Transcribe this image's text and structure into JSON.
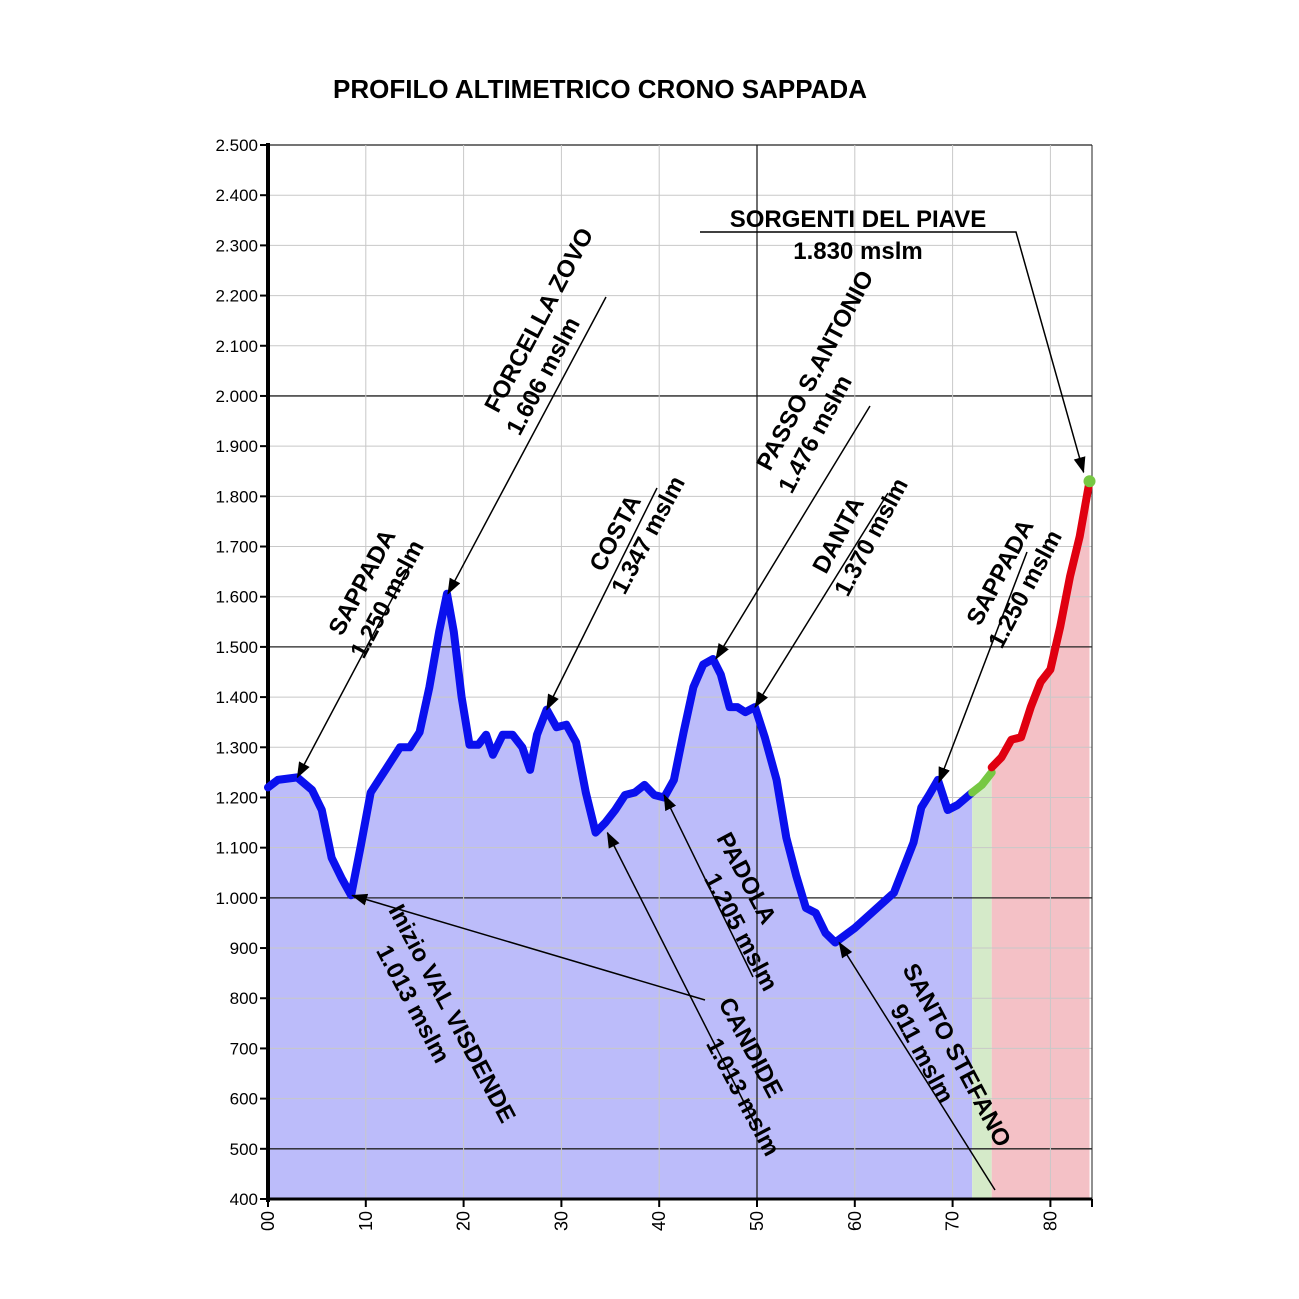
{
  "chart_data": {
    "type": "area",
    "title": "PROFILO ALTIMETRICO CRONO SAPPADA",
    "xlabel": "",
    "ylabel": "",
    "xlim": [
      0,
      84
    ],
    "ylim": [
      400,
      2500
    ],
    "grid": true,
    "x_ticks": [
      {
        "value": 0,
        "label": "00"
      },
      {
        "value": 10,
        "label": "10"
      },
      {
        "value": 20,
        "label": "20"
      },
      {
        "value": 30,
        "label": "30"
      },
      {
        "value": 40,
        "label": "40"
      },
      {
        "value": 50,
        "label": "50"
      },
      {
        "value": 60,
        "label": "60"
      },
      {
        "value": 70,
        "label": "70"
      },
      {
        "value": 80,
        "label": "80"
      }
    ],
    "y_ticks": [
      {
        "value": 400,
        "label": "400"
      },
      {
        "value": 500,
        "label": "500"
      },
      {
        "value": 600,
        "label": "600"
      },
      {
        "value": 700,
        "label": "700"
      },
      {
        "value": 800,
        "label": "800"
      },
      {
        "value": 900,
        "label": "900"
      },
      {
        "value": 1000,
        "label": "1.000"
      },
      {
        "value": 1100,
        "label": "1.100"
      },
      {
        "value": 1200,
        "label": "1.200"
      },
      {
        "value": 1300,
        "label": "1.300"
      },
      {
        "value": 1400,
        "label": "1.400"
      },
      {
        "value": 1500,
        "label": "1.500"
      },
      {
        "value": 1600,
        "label": "1.600"
      },
      {
        "value": 1700,
        "label": "1.700"
      },
      {
        "value": 1800,
        "label": "1.800"
      },
      {
        "value": 1900,
        "label": "1.900"
      },
      {
        "value": 2000,
        "label": "2.000"
      },
      {
        "value": 2100,
        "label": "2.100"
      },
      {
        "value": 2200,
        "label": "2.200"
      },
      {
        "value": 2300,
        "label": "2.300"
      },
      {
        "value": 2400,
        "label": "2.400"
      },
      {
        "value": 2500,
        "label": "2.500"
      }
    ],
    "series": [
      {
        "color": "#0a10ee",
        "fill": "#bcbcfa",
        "points": [
          [
            0,
            1220
          ],
          [
            1,
            1235
          ],
          [
            3,
            1240
          ],
          [
            4.5,
            1215
          ],
          [
            5.5,
            1175
          ],
          [
            6.5,
            1080
          ],
          [
            7.5,
            1040
          ],
          [
            8.5,
            1005
          ],
          [
            9.5,
            1105
          ],
          [
            10.5,
            1210
          ],
          [
            12,
            1255
          ],
          [
            13.5,
            1300
          ],
          [
            14.5,
            1300
          ],
          [
            15.5,
            1330
          ],
          [
            16.5,
            1420
          ],
          [
            17.5,
            1530
          ],
          [
            18.3,
            1606
          ],
          [
            19,
            1530
          ],
          [
            19.8,
            1400
          ],
          [
            20.6,
            1305
          ],
          [
            21.5,
            1305
          ],
          [
            22.3,
            1325
          ],
          [
            23,
            1285
          ],
          [
            24,
            1325
          ],
          [
            25,
            1325
          ],
          [
            26,
            1300
          ],
          [
            26.8,
            1255
          ],
          [
            27.5,
            1325
          ],
          [
            28.5,
            1375
          ],
          [
            29.5,
            1340
          ],
          [
            30.5,
            1345
          ],
          [
            31.5,
            1310
          ],
          [
            32.5,
            1210
          ],
          [
            33.5,
            1130
          ],
          [
            34.5,
            1150
          ],
          [
            35.5,
            1175
          ],
          [
            36.5,
            1205
          ],
          [
            37.5,
            1210
          ],
          [
            38.5,
            1225
          ],
          [
            39.5,
            1205
          ],
          [
            40.5,
            1200
          ],
          [
            41.5,
            1235
          ],
          [
            42.5,
            1330
          ],
          [
            43.5,
            1420
          ],
          [
            44.5,
            1465
          ],
          [
            45.5,
            1476
          ],
          [
            46.3,
            1445
          ],
          [
            47.2,
            1380
          ],
          [
            48,
            1380
          ],
          [
            48.8,
            1370
          ],
          [
            49.8,
            1380
          ],
          [
            50.8,
            1320
          ],
          [
            52,
            1235
          ],
          [
            53,
            1120
          ],
          [
            54,
            1045
          ],
          [
            55,
            980
          ],
          [
            56,
            970
          ],
          [
            57,
            930
          ],
          [
            58,
            911
          ],
          [
            60,
            940
          ],
          [
            62,
            975
          ],
          [
            64,
            1010
          ],
          [
            65,
            1060
          ],
          [
            66,
            1110
          ],
          [
            66.8,
            1180
          ],
          [
            67.6,
            1205
          ],
          [
            68.5,
            1235
          ],
          [
            69.5,
            1175
          ],
          [
            70.5,
            1185
          ],
          [
            72,
            1210
          ]
        ]
      },
      {
        "color": "#76c843",
        "fill": "#d5eac9",
        "points": [
          [
            72,
            1210
          ],
          [
            73,
            1225
          ],
          [
            74,
            1250
          ]
        ]
      },
      {
        "color": "#e00010",
        "fill": "#f4c1c6",
        "points": [
          [
            74,
            1260
          ],
          [
            75,
            1280
          ],
          [
            76,
            1315
          ],
          [
            77,
            1320
          ],
          [
            78,
            1380
          ],
          [
            79,
            1430
          ],
          [
            80,
            1455
          ],
          [
            81,
            1540
          ],
          [
            82,
            1640
          ],
          [
            83,
            1720
          ],
          [
            84,
            1830
          ]
        ]
      }
    ],
    "end_point": {
      "x": 84,
      "y": 1830
    },
    "annotations": [
      {
        "lines": [
          "SAPPADA",
          "1.250 mslm"
        ],
        "x": 3,
        "y": 1240,
        "style": "rotated"
      },
      {
        "lines": [
          "Inizio VAL VISDENDE",
          "1.013 mslm"
        ],
        "x": 8.6,
        "y": 1005,
        "style": "rotated-down"
      },
      {
        "lines": [
          "FORCELLA ZOVO",
          "1.606 mslm"
        ],
        "x": 18.4,
        "y": 1606,
        "style": "rotated"
      },
      {
        "lines": [
          "COSTA",
          "1.347 mslm"
        ],
        "x": 28.5,
        "y": 1375,
        "style": "rotated"
      },
      {
        "lines": [
          "CANDIDE",
          "1.013 mslm"
        ],
        "x": 34.7,
        "y": 1130,
        "style": "rotated-down"
      },
      {
        "lines": [
          "PADOLA",
          "1.205 mslm"
        ],
        "x": 40.5,
        "y": 1205,
        "style": "rotated-down"
      },
      {
        "lines": [
          "PASSO S.ANTONIO",
          "1.476 mslm"
        ],
        "x": 45.8,
        "y": 1476,
        "style": "rotated"
      },
      {
        "lines": [
          "DANTA",
          "1.370 mslm"
        ],
        "x": 49.8,
        "y": 1380,
        "style": "rotated"
      },
      {
        "lines": [
          "SANTO STEFANO",
          "911 mslm"
        ],
        "x": 58.4,
        "y": 911,
        "style": "rotated-down"
      },
      {
        "lines": [
          "SAPPADA",
          "1.250 mslm"
        ],
        "x": 68.6,
        "y": 1230,
        "style": "rotated"
      },
      {
        "lines": [
          "SORGENTI DEL PIAVE",
          "1.830 mslm"
        ],
        "x": 83.6,
        "y": 1832,
        "style": "horizontal"
      }
    ]
  }
}
